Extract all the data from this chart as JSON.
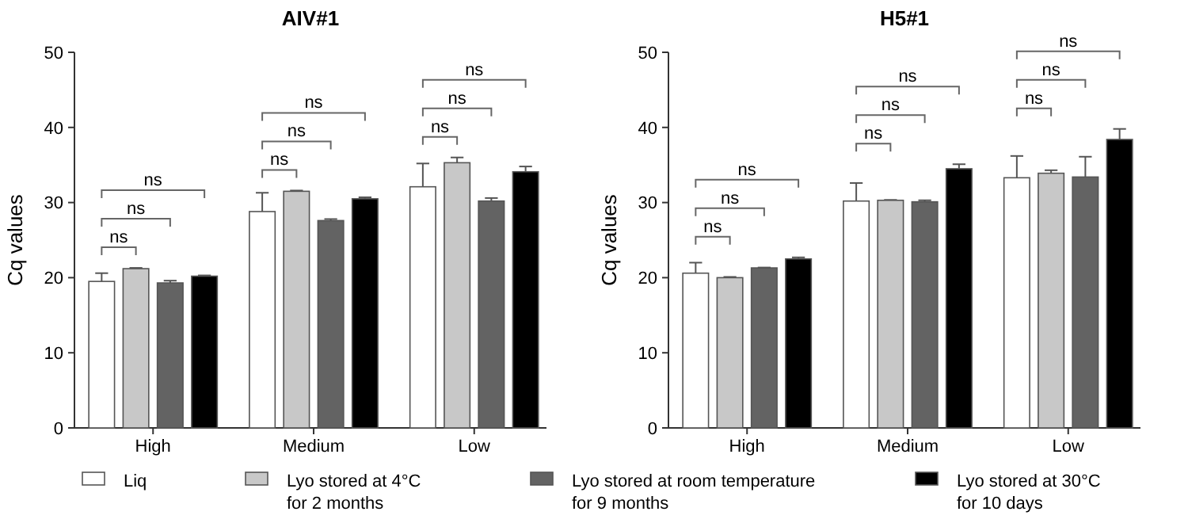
{
  "chart_data": [
    {
      "type": "bar",
      "title": "AIV#1",
      "ylabel": "Cq values",
      "categories": [
        "High",
        "Medium",
        "Low"
      ],
      "ylim": [
        0,
        50
      ],
      "yticks": [
        0,
        10,
        20,
        30,
        40,
        50
      ],
      "grid": false,
      "legend": "bottom",
      "series": [
        {
          "name": "Liq",
          "color": "#ffffff",
          "values": [
            19.5,
            28.8,
            32.1
          ],
          "errors": [
            1.1,
            2.5,
            3.1
          ]
        },
        {
          "name": "Lyo stored at 4°C for 2 months",
          "color": "#c8c8c8",
          "values": [
            21.2,
            31.5,
            35.3
          ],
          "errors": [
            0.1,
            0.1,
            0.7
          ]
        },
        {
          "name": "Lyo stored at room temperature for 9 months",
          "color": "#636363",
          "values": [
            19.3,
            27.6,
            30.2
          ],
          "errors": [
            0.3,
            0.2,
            0.4
          ]
        },
        {
          "name": "Lyo stored at 30°C for 10 days",
          "color": "#000000",
          "values": [
            20.2,
            30.5,
            34.1
          ],
          "errors": [
            0.1,
            0.2,
            0.7
          ]
        }
      ],
      "annotations": [
        "ns",
        "ns",
        "ns",
        "ns",
        "ns",
        "ns",
        "ns",
        "ns",
        "ns"
      ]
    },
    {
      "type": "bar",
      "title": "H5#1",
      "ylabel": "Cq values",
      "categories": [
        "High",
        "Medium",
        "Low"
      ],
      "ylim": [
        0,
        50
      ],
      "yticks": [
        0,
        10,
        20,
        30,
        40,
        50
      ],
      "grid": false,
      "series": [
        {
          "color": "#ffffff",
          "values": [
            20.6,
            30.2,
            33.3
          ],
          "errors": [
            1.4,
            2.4,
            2.9
          ]
        },
        {
          "color": "#c8c8c8",
          "values": [
            20,
            30.3,
            33.9
          ],
          "errors": [
            0.1,
            0.05,
            0.4
          ]
        },
        {
          "color": "#636363",
          "values": [
            21.3,
            30.1,
            33.4
          ],
          "errors": [
            0.05,
            0.2,
            2.7
          ]
        },
        {
          "color": "#000000",
          "values": [
            22.5,
            34.5,
            38.4
          ],
          "errors": [
            0.2,
            0.6,
            1.4
          ]
        }
      ],
      "annotations": [
        "ns",
        "ns",
        "ns",
        "ns",
        "ns",
        "ns",
        "ns",
        "ns",
        "ns"
      ]
    }
  ]
}
